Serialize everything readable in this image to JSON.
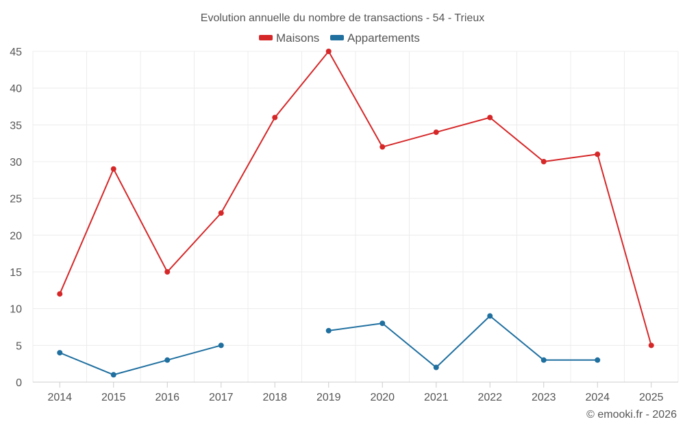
{
  "chart_data": {
    "type": "line",
    "title": "Evolution annuelle du nombre de transactions - 54 - Trieux",
    "categories": [
      "2014",
      "2015",
      "2016",
      "2017",
      "2018",
      "2019",
      "2020",
      "2021",
      "2022",
      "2023",
      "2024",
      "2025"
    ],
    "ylim": [
      0,
      45
    ],
    "yticks": [
      0,
      5,
      10,
      15,
      20,
      25,
      30,
      35,
      40,
      45
    ],
    "grid": true,
    "legend_position": "top-center",
    "series": [
      {
        "name": "Maisons",
        "color": "#d62728",
        "values": [
          12,
          29,
          15,
          23,
          36,
          45,
          32,
          34,
          36,
          30,
          31,
          5
        ]
      },
      {
        "name": "Appartements",
        "color": "#1f6f9f",
        "values": [
          4,
          1,
          3,
          5,
          null,
          7,
          8,
          2,
          9,
          3,
          3,
          null
        ]
      }
    ]
  },
  "credit": "© emooki.fr - 2026"
}
